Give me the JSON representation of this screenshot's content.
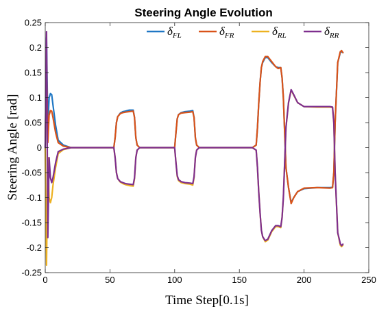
{
  "chart_data": {
    "type": "line",
    "title": "Steering Angle Evolution",
    "xlabel": "Time Step[0.1s]",
    "ylabel": "Steering Angle [rad]",
    "xlim": [
      0,
      250
    ],
    "ylim": [
      -0.25,
      0.25
    ],
    "x_ticks": [
      "0",
      "50",
      "100",
      "150",
      "200",
      "250"
    ],
    "y_ticks": [
      "0.25",
      "0.2",
      "0.15",
      "0.1",
      "0.05",
      "0",
      "-0.05",
      "-0.1",
      "-0.15",
      "-0.2",
      "-0.25"
    ],
    "grid": false,
    "legend_position": "top",
    "series": [
      {
        "name": "δ_FL",
        "base": "δ",
        "sub": "FL",
        "color": "#1f77c4",
        "x": [
          0,
          1,
          2,
          3,
          4,
          5,
          6,
          8,
          10,
          14,
          20,
          30,
          53,
          54,
          55,
          56,
          58,
          60,
          62,
          65,
          68,
          69,
          70,
          71,
          73,
          76,
          80,
          100,
          101,
          102,
          103,
          105,
          108,
          112,
          114,
          115,
          116,
          117,
          119,
          122,
          130,
          160,
          163,
          164,
          165,
          166,
          167,
          168,
          170,
          172,
          175,
          178,
          180,
          182,
          183,
          184,
          185,
          186,
          188,
          190,
          192,
          195,
          200,
          210,
          220,
          222,
          223,
          224,
          226,
          228,
          229,
          230
        ],
        "y": [
          0,
          0.22,
          0.04,
          0.1,
          0.108,
          0.106,
          0.085,
          0.045,
          0.015,
          0.005,
          0,
          0,
          0,
          0.02,
          0.05,
          0.062,
          0.069,
          0.072,
          0.073,
          0.075,
          0.075,
          0.06,
          0.02,
          0.005,
          0,
          0,
          0,
          0,
          0.03,
          0.058,
          0.066,
          0.07,
          0.072,
          0.073,
          0.074,
          0.06,
          0.02,
          0.005,
          0,
          0,
          0,
          0,
          0.005,
          0.04,
          0.09,
          0.13,
          0.16,
          0.17,
          0.18,
          0.18,
          0.17,
          0.162,
          0.16,
          0.16,
          0.14,
          0.1,
          0.03,
          -0.04,
          -0.08,
          -0.11,
          -0.1,
          -0.088,
          -0.082,
          -0.08,
          -0.08,
          -0.079,
          -0.05,
          0.05,
          0.17,
          0.19,
          0.192,
          0.19
        ]
      },
      {
        "name": "δ_FR",
        "base": "δ",
        "sub": "FR",
        "color": "#d95319",
        "x": [
          0,
          1,
          2,
          3,
          4,
          5,
          6,
          8,
          10,
          14,
          20,
          30,
          53,
          54,
          55,
          56,
          58,
          60,
          62,
          65,
          68,
          69,
          70,
          71,
          73,
          76,
          80,
          100,
          101,
          102,
          103,
          105,
          108,
          112,
          114,
          115,
          116,
          117,
          119,
          122,
          130,
          160,
          163,
          164,
          165,
          166,
          167,
          168,
          170,
          172,
          175,
          178,
          180,
          182,
          183,
          184,
          185,
          186,
          188,
          190,
          192,
          195,
          200,
          210,
          220,
          222,
          223,
          224,
          226,
          228,
          229,
          230
        ],
        "y": [
          0,
          0.185,
          0.01,
          0.065,
          0.074,
          0.073,
          0.06,
          0.03,
          0.01,
          0.003,
          0,
          0,
          0,
          0.02,
          0.05,
          0.062,
          0.068,
          0.07,
          0.071,
          0.072,
          0.073,
          0.06,
          0.02,
          0.005,
          0,
          0,
          0,
          0,
          0.03,
          0.058,
          0.066,
          0.069,
          0.07,
          0.071,
          0.072,
          0.06,
          0.02,
          0.005,
          0,
          0,
          0,
          0,
          0.005,
          0.04,
          0.09,
          0.13,
          0.16,
          0.172,
          0.182,
          0.182,
          0.172,
          0.162,
          0.158,
          0.16,
          0.14,
          0.1,
          0.03,
          -0.04,
          -0.08,
          -0.112,
          -0.1,
          -0.088,
          -0.081,
          -0.08,
          -0.081,
          -0.08,
          -0.05,
          0.05,
          0.17,
          0.192,
          0.194,
          0.19
        ]
      },
      {
        "name": "δ_RL",
        "base": "δ",
        "sub": "RL",
        "color": "#edb120",
        "x": [
          0,
          1,
          2,
          3,
          4,
          5,
          6,
          8,
          10,
          14,
          20,
          30,
          53,
          54,
          55,
          56,
          58,
          60,
          62,
          65,
          68,
          69,
          70,
          71,
          73,
          76,
          80,
          100,
          101,
          102,
          103,
          105,
          108,
          112,
          114,
          115,
          116,
          117,
          119,
          122,
          130,
          160,
          163,
          164,
          165,
          166,
          167,
          168,
          170,
          172,
          175,
          178,
          180,
          182,
          183,
          184,
          185,
          186,
          188,
          190,
          192,
          195,
          200,
          210,
          220,
          222,
          223,
          224,
          226,
          228,
          229,
          230
        ],
        "y": [
          0,
          -0.235,
          -0.02,
          -0.1,
          -0.11,
          -0.1,
          -0.075,
          -0.04,
          -0.012,
          -0.004,
          0,
          0,
          0,
          -0.02,
          -0.05,
          -0.062,
          -0.069,
          -0.072,
          -0.074,
          -0.076,
          -0.077,
          -0.062,
          -0.02,
          -0.005,
          0,
          0,
          0,
          0,
          -0.03,
          -0.058,
          -0.066,
          -0.07,
          -0.072,
          -0.073,
          -0.075,
          -0.06,
          -0.02,
          -0.005,
          0,
          0,
          0,
          0,
          -0.005,
          -0.04,
          -0.09,
          -0.13,
          -0.165,
          -0.178,
          -0.188,
          -0.185,
          -0.168,
          -0.158,
          -0.158,
          -0.16,
          -0.14,
          -0.1,
          -0.03,
          0.04,
          0.09,
          0.115,
          0.105,
          0.09,
          0.082,
          0.081,
          0.081,
          0.08,
          0.05,
          -0.05,
          -0.17,
          -0.195,
          -0.198,
          -0.195
        ]
      },
      {
        "name": "δ_RR",
        "base": "δ",
        "sub": "RR",
        "color": "#7e2f8e",
        "x": [
          0,
          1,
          2,
          3,
          4,
          5,
          6,
          8,
          10,
          14,
          20,
          30,
          53,
          54,
          55,
          56,
          58,
          60,
          62,
          65,
          68,
          69,
          70,
          71,
          73,
          76,
          80,
          100,
          101,
          102,
          103,
          105,
          108,
          112,
          114,
          115,
          116,
          117,
          119,
          122,
          130,
          160,
          163,
          164,
          165,
          166,
          167,
          168,
          170,
          172,
          175,
          178,
          180,
          182,
          183,
          184,
          185,
          186,
          188,
          190,
          192,
          195,
          200,
          210,
          220,
          222,
          223,
          224,
          226,
          228,
          229,
          230
        ],
        "y": [
          0,
          0.232,
          -0.18,
          -0.02,
          -0.06,
          -0.07,
          -0.06,
          -0.03,
          -0.008,
          -0.003,
          0,
          0,
          0,
          -0.02,
          -0.05,
          -0.062,
          -0.068,
          -0.07,
          -0.072,
          -0.073,
          -0.074,
          -0.06,
          -0.02,
          -0.005,
          0,
          0,
          0,
          0,
          -0.03,
          -0.056,
          -0.064,
          -0.068,
          -0.07,
          -0.071,
          -0.072,
          -0.058,
          -0.02,
          -0.005,
          0,
          0,
          0,
          0,
          -0.005,
          -0.04,
          -0.09,
          -0.13,
          -0.165,
          -0.178,
          -0.186,
          -0.183,
          -0.166,
          -0.156,
          -0.156,
          -0.158,
          -0.14,
          -0.1,
          -0.03,
          0.04,
          0.09,
          0.116,
          0.106,
          0.09,
          0.082,
          0.082,
          0.082,
          0.081,
          0.05,
          -0.05,
          -0.17,
          -0.192,
          -0.196,
          -0.193
        ]
      }
    ]
  }
}
